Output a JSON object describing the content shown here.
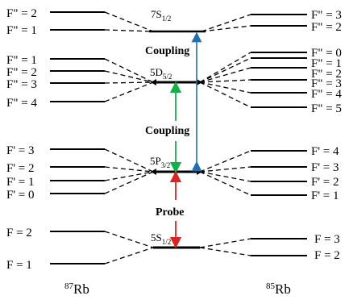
{
  "rb87": {
    "name": "Rb",
    "mass": "87",
    "levels_7s": [
      "F\" = 2",
      "F\" = 1"
    ],
    "levels_5d": [
      "F\" = 1",
      "F\" = 2",
      "F\" = 3",
      "F\" = 4"
    ],
    "levels_5p": [
      "F' = 3",
      "F' = 2",
      "F' = 1",
      "F' = 0"
    ],
    "levels_5s": [
      "F = 2",
      "F = 1"
    ]
  },
  "rb85": {
    "name": "Rb",
    "mass": "85",
    "levels_7s": [
      "F\" = 3",
      "F\" = 2"
    ],
    "levels_5d": [
      "F\" = 0",
      "F\" = 1",
      "F\" = 2",
      "F\" = 3",
      "F\" = 4",
      "F\" = 5"
    ],
    "levels_5p": [
      "F' = 4",
      "F' = 3",
      "F' = 2",
      "F' = 1"
    ],
    "levels_5s": [
      "F = 3",
      "F = 2"
    ]
  },
  "center_levels": {
    "s7": {
      "n": "7S",
      "sub": "1/2"
    },
    "d5": {
      "n": "5D",
      "sub": "5/2"
    },
    "p3": {
      "n": "5P",
      "sub": "3/2"
    },
    "s1": {
      "n": "5S",
      "sub": "1/2"
    }
  },
  "transitions": {
    "coupling_upper": "Coupling",
    "coupling_lower": "Coupling",
    "probe": "Probe"
  },
  "colors": {
    "blue_arrow": "#1f6fb8",
    "green_arrow": "#13b04a",
    "red_arrow": "#e0211d"
  }
}
